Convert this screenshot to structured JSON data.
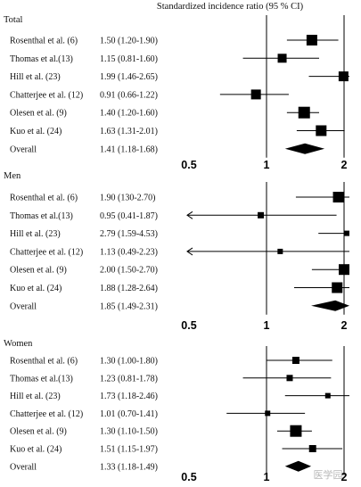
{
  "chart_data": {
    "type": "forest",
    "title": "Standardized incidence ratio (95 % CI)",
    "x_scale": "log",
    "x_ticks": [
      {
        "value": 0.5,
        "label": "0.5"
      },
      {
        "value": 1,
        "label": "1"
      },
      {
        "value": 2,
        "label": "2"
      }
    ],
    "panels": [
      {
        "name": "Total",
        "rows": [
          {
            "study": "Rosenthal et al. (6)",
            "ci_text": "1.50 (1.20-1.90)",
            "est": 1.5,
            "lo": 1.2,
            "hi": 1.9,
            "marker": "square",
            "weight": 12
          },
          {
            "study": "Thomas et al.(13)",
            "ci_text": "1.15 (0.81-1.60)",
            "est": 1.15,
            "lo": 0.81,
            "hi": 1.6,
            "marker": "square",
            "weight": 10
          },
          {
            "study": "Hill et al. (23)",
            "ci_text": "1.99 (1.46-2.65)",
            "est": 1.99,
            "lo": 1.46,
            "hi": 2.65,
            "marker": "square",
            "weight": 11
          },
          {
            "study": "Chatterjee et al. (12)",
            "ci_text": "0.91 (0.66-1.22)",
            "est": 0.91,
            "lo": 0.66,
            "hi": 1.22,
            "marker": "square",
            "weight": 11
          },
          {
            "study": "Olesen et al. (9)",
            "ci_text": "1.40 (1.20-1.60)",
            "est": 1.4,
            "lo": 1.2,
            "hi": 1.6,
            "marker": "square",
            "weight": 13
          },
          {
            "study": "Kuo et al. (24)",
            "ci_text": "1.63 (1.31-2.01)",
            "est": 1.63,
            "lo": 1.31,
            "hi": 2.01,
            "marker": "square",
            "weight": 12
          },
          {
            "study": "Overall",
            "ci_text": "1.41 (1.18-1.68)",
            "est": 1.41,
            "lo": 1.18,
            "hi": 1.68,
            "marker": "diamond"
          }
        ]
      },
      {
        "name": "Men",
        "rows": [
          {
            "study": "Rosenthal et al. (6)",
            "ci_text": "1.90 (130-2.70)",
            "est": 1.9,
            "lo": 1.3,
            "hi": 2.7,
            "marker": "square",
            "weight": 12
          },
          {
            "study": "Thomas et al.(13)",
            "ci_text": "0.95 (0.41-1.87)",
            "est": 0.95,
            "lo": 0.41,
            "hi": 1.87,
            "marker": "square",
            "weight": 7,
            "arrow_left": true
          },
          {
            "study": "Hill et al. (23)",
            "ci_text": "2.79 (1.59-4.53)",
            "est": 2.79,
            "lo": 1.59,
            "hi": 4.53,
            "marker": "square",
            "weight": 6
          },
          {
            "study": "Chatterjee et al. (12)",
            "ci_text": "1.13 (0.49-2.23)",
            "est": 1.13,
            "lo": 0.49,
            "hi": 2.23,
            "marker": "square",
            "weight": 6,
            "arrow_left": true
          },
          {
            "study": "Olesen et al. (9)",
            "ci_text": "2.00 (1.50-2.70)",
            "est": 2.0,
            "lo": 1.5,
            "hi": 2.7,
            "marker": "square",
            "weight": 12
          },
          {
            "study": "Kuo et al. (24)",
            "ci_text": "1.88 (1.28-2.64)",
            "est": 1.88,
            "lo": 1.28,
            "hi": 2.64,
            "marker": "square",
            "weight": 12
          },
          {
            "study": "Overall",
            "ci_text": "1.85 (1.49-2.31)",
            "est": 1.85,
            "lo": 1.49,
            "hi": 2.31,
            "marker": "diamond"
          }
        ]
      },
      {
        "name": "Women",
        "rows": [
          {
            "study": "Rosenthal et al. (6)",
            "ci_text": "1.30 (1.00-1.80)",
            "est": 1.3,
            "lo": 1.0,
            "hi": 1.8,
            "marker": "square",
            "weight": 8
          },
          {
            "study": "Thomas et al.(13)",
            "ci_text": "1.23 (0.81-1.78)",
            "est": 1.23,
            "lo": 0.81,
            "hi": 1.78,
            "marker": "square",
            "weight": 7
          },
          {
            "study": "Hill et al. (23)",
            "ci_text": "1.73 (1.18-2.46)",
            "est": 1.73,
            "lo": 1.18,
            "hi": 2.46,
            "marker": "square",
            "weight": 6
          },
          {
            "study": "Chatterjee et al. (12)",
            "ci_text": "1.01 (0.70-1.41)",
            "est": 1.01,
            "lo": 0.7,
            "hi": 1.41,
            "marker": "square",
            "weight": 6
          },
          {
            "study": "Olesen et al. (9)",
            "ci_text": "1.30 (1.10-1.50)",
            "est": 1.3,
            "lo": 1.1,
            "hi": 1.5,
            "marker": "square",
            "weight": 13
          },
          {
            "study": "Kuo et al. (24)",
            "ci_text": "1.51 (1.15-1.97)",
            "est": 1.51,
            "lo": 1.15,
            "hi": 1.97,
            "marker": "square",
            "weight": 8
          },
          {
            "study": "Overall",
            "ci_text": "1.33 (1.18-1.49)",
            "est": 1.33,
            "lo": 1.18,
            "hi": 1.49,
            "marker": "diamond"
          }
        ]
      }
    ],
    "colors": {
      "marks": "#000000",
      "text": "#111111"
    }
  },
  "watermark": "医学园"
}
